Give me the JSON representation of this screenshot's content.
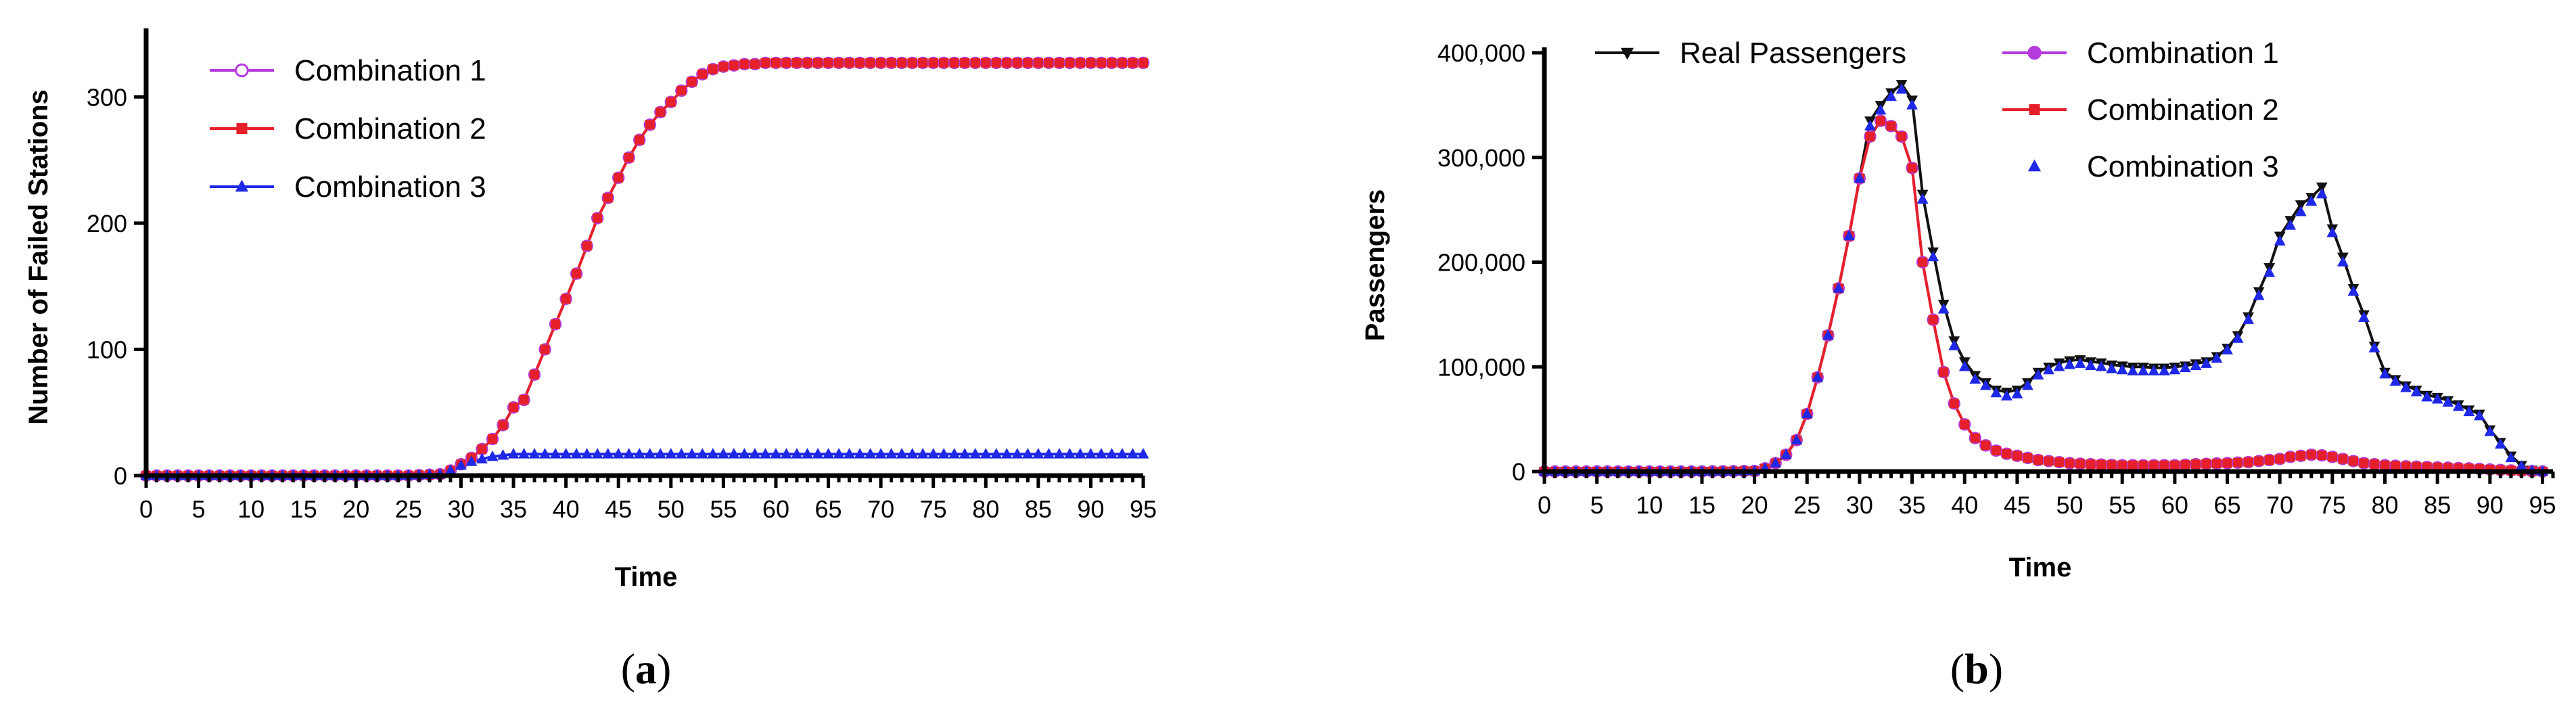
{
  "chart_data": [
    {
      "type": "line",
      "caption": "(a)",
      "caption_letter": "a",
      "xlabel": "Time",
      "ylabel": "Number of Failed Stations",
      "xlim": [
        0,
        95
      ],
      "ylim": [
        0,
        350
      ],
      "xticks": [
        "0",
        "5",
        "10",
        "15",
        "20",
        "25",
        "30",
        "35",
        "40",
        "45",
        "50",
        "55",
        "60",
        "65",
        "70",
        "75",
        "80",
        "85",
        "90",
        "95"
      ],
      "yticks": [
        "0",
        "100",
        "200",
        "300"
      ],
      "legend_position": "top-left",
      "grid": false,
      "series": [
        {
          "name": "Combination 1",
          "color": "#B43CDC",
          "marker": "open-circle",
          "x": [
            0,
            5,
            10,
            15,
            20,
            25,
            28,
            29,
            30,
            31,
            32,
            33,
            34,
            35,
            36,
            37,
            38,
            39,
            40,
            41,
            42,
            43,
            44,
            45,
            46,
            47,
            48,
            49,
            50,
            51,
            52,
            53,
            54,
            55,
            56,
            57,
            58,
            59,
            60,
            62,
            65,
            70,
            75,
            80,
            85,
            90,
            95
          ],
          "y": [
            0,
            0,
            0,
            0,
            0,
            0,
            1,
            4,
            9,
            14,
            21,
            29,
            40,
            54,
            60,
            80,
            100,
            120,
            140,
            160,
            182,
            204,
            220,
            236,
            252,
            266,
            278,
            288,
            296,
            305,
            312,
            318,
            322,
            324,
            325,
            326,
            326,
            327,
            327,
            327,
            327,
            327,
            327,
            327,
            327,
            327,
            327
          ]
        },
        {
          "name": "Combination 2",
          "color": "#E6202A",
          "marker": "square",
          "x": [
            0,
            5,
            10,
            15,
            20,
            25,
            28,
            29,
            30,
            31,
            32,
            33,
            34,
            35,
            36,
            37,
            38,
            39,
            40,
            41,
            42,
            43,
            44,
            45,
            46,
            47,
            48,
            49,
            50,
            51,
            52,
            53,
            54,
            55,
            56,
            57,
            58,
            59,
            60,
            62,
            65,
            70,
            75,
            80,
            85,
            90,
            95
          ],
          "y": [
            0,
            0,
            0,
            0,
            0,
            0,
            1,
            4,
            9,
            14,
            21,
            29,
            40,
            54,
            60,
            80,
            100,
            120,
            140,
            160,
            182,
            204,
            220,
            236,
            252,
            266,
            278,
            288,
            296,
            305,
            312,
            318,
            322,
            324,
            325,
            326,
            326,
            327,
            327,
            327,
            327,
            327,
            327,
            327,
            327,
            327,
            327
          ]
        },
        {
          "name": "Combination 3",
          "color": "#1E28E6",
          "marker": "triangle",
          "x": [
            0,
            5,
            10,
            15,
            20,
            25,
            28,
            29,
            30,
            31,
            32,
            33,
            34,
            35,
            36,
            37,
            40,
            45,
            50,
            55,
            60,
            65,
            70,
            75,
            80,
            85,
            90,
            95
          ],
          "y": [
            0,
            0,
            0,
            0,
            0,
            0,
            1,
            4,
            8,
            11,
            13,
            15,
            16,
            17,
            17,
            17,
            17,
            17,
            17,
            17,
            17,
            17,
            17,
            17,
            17,
            17,
            17,
            17
          ]
        }
      ]
    },
    {
      "type": "line",
      "caption": "(b)",
      "caption_letter": "b",
      "xlabel": "Time",
      "ylabel": "Passengers",
      "xlim": [
        0,
        96
      ],
      "ylim": [
        0,
        400000
      ],
      "xticks": [
        "0",
        "5",
        "10",
        "15",
        "20",
        "25",
        "30",
        "35",
        "40",
        "45",
        "50",
        "55",
        "60",
        "65",
        "70",
        "75",
        "80",
        "85",
        "90",
        "95"
      ],
      "yticks": [
        "0",
        "100,000",
        "200,000",
        "300,000",
        "400,000"
      ],
      "legend_position": "top",
      "grid": false,
      "series": [
        {
          "name": "Real Passengers",
          "color": "#111111",
          "marker": "down-triangle",
          "x": [
            0,
            5,
            10,
            15,
            20,
            21,
            22,
            23,
            24,
            25,
            26,
            27,
            28,
            29,
            30,
            31,
            32,
            33,
            34,
            35,
            36,
            37,
            38,
            39,
            40,
            41,
            42,
            43,
            44,
            45,
            46,
            47,
            48,
            49,
            50,
            51,
            52,
            53,
            54,
            55,
            56,
            57,
            58,
            59,
            60,
            61,
            62,
            63,
            64,
            65,
            66,
            67,
            68,
            69,
            70,
            71,
            72,
            73,
            74,
            75,
            76,
            77,
            78,
            79,
            80,
            81,
            82,
            83,
            84,
            85,
            86,
            87,
            88,
            89,
            90,
            91,
            92,
            93,
            94,
            95
          ],
          "y": [
            0,
            0,
            0,
            0,
            500,
            3000,
            8000,
            16000,
            30000,
            55000,
            90000,
            130000,
            175000,
            225000,
            280000,
            335000,
            350000,
            362000,
            370000,
            355000,
            265000,
            210000,
            160000,
            125000,
            105000,
            92000,
            85000,
            78000,
            76000,
            78000,
            85000,
            95000,
            100000,
            104000,
            106000,
            107000,
            105000,
            104000,
            102000,
            101000,
            100000,
            100000,
            99000,
            99000,
            100000,
            101000,
            103000,
            105000,
            110000,
            118000,
            130000,
            148000,
            172000,
            195000,
            225000,
            240000,
            255000,
            262000,
            272000,
            232000,
            205000,
            175000,
            150000,
            120000,
            95000,
            88000,
            82000,
            78000,
            73000,
            71000,
            68000,
            64000,
            59000,
            55000,
            40000,
            28000,
            15000,
            6000,
            1500,
            0
          ]
        },
        {
          "name": "Combination 1",
          "color": "#B43CDC",
          "marker": "circle",
          "x": [
            0,
            5,
            10,
            15,
            20,
            21,
            22,
            23,
            24,
            25,
            26,
            27,
            28,
            29,
            30,
            31,
            32,
            33,
            34,
            35,
            36,
            37,
            38,
            39,
            40,
            41,
            42,
            43,
            44,
            45,
            46,
            47,
            48,
            49,
            50,
            52,
            55,
            58,
            60,
            62,
            65,
            67,
            68,
            70,
            71,
            72,
            73,
            74,
            75,
            76,
            77,
            78,
            80,
            82,
            85,
            88,
            90,
            92,
            95
          ],
          "y": [
            0,
            0,
            0,
            0,
            500,
            3000,
            8000,
            16000,
            30000,
            55000,
            90000,
            130000,
            175000,
            225000,
            280000,
            320000,
            335000,
            330000,
            320000,
            290000,
            200000,
            145000,
            95000,
            65000,
            45000,
            32000,
            25000,
            20000,
            17000,
            15000,
            13000,
            11000,
            10000,
            9000,
            8000,
            7000,
            6000,
            6000,
            6000,
            7000,
            8000,
            9000,
            10000,
            12000,
            14000,
            15000,
            16000,
            15500,
            14000,
            12000,
            10000,
            8000,
            6000,
            5000,
            4000,
            3000,
            2000,
            1000,
            0
          ]
        },
        {
          "name": "Combination 2",
          "color": "#E6202A",
          "marker": "square",
          "x": [
            0,
            5,
            10,
            15,
            20,
            21,
            22,
            23,
            24,
            25,
            26,
            27,
            28,
            29,
            30,
            31,
            32,
            33,
            34,
            35,
            36,
            37,
            38,
            39,
            40,
            41,
            42,
            43,
            44,
            45,
            46,
            47,
            48,
            49,
            50,
            52,
            55,
            58,
            60,
            62,
            65,
            67,
            68,
            70,
            71,
            72,
            73,
            74,
            75,
            76,
            77,
            78,
            80,
            82,
            85,
            88,
            90,
            92,
            95
          ],
          "y": [
            0,
            0,
            0,
            0,
            500,
            3000,
            8000,
            16000,
            30000,
            55000,
            90000,
            130000,
            175000,
            225000,
            280000,
            320000,
            335000,
            330000,
            320000,
            290000,
            200000,
            145000,
            95000,
            65000,
            45000,
            32000,
            25000,
            20000,
            17000,
            15000,
            13000,
            11000,
            10000,
            9000,
            8000,
            7000,
            6000,
            6000,
            6000,
            7000,
            8000,
            9000,
            10000,
            12000,
            14000,
            15000,
            16000,
            15500,
            14000,
            12000,
            10000,
            8000,
            6000,
            5000,
            4000,
            3000,
            2000,
            1000,
            0
          ]
        },
        {
          "name": "Combination 3",
          "color": "#1E28E6",
          "marker": "triangle",
          "x": [
            0,
            5,
            10,
            15,
            20,
            21,
            22,
            23,
            24,
            25,
            26,
            27,
            28,
            29,
            30,
            31,
            32,
            33,
            34,
            35,
            36,
            37,
            38,
            39,
            40,
            41,
            42,
            43,
            44,
            45,
            46,
            47,
            48,
            49,
            50,
            51,
            52,
            53,
            54,
            55,
            56,
            57,
            58,
            59,
            60,
            61,
            62,
            63,
            64,
            65,
            66,
            67,
            68,
            69,
            70,
            71,
            72,
            73,
            74,
            75,
            76,
            77,
            78,
            79,
            80,
            81,
            82,
            83,
            84,
            85,
            86,
            87,
            88,
            89,
            90,
            91,
            92,
            93,
            94,
            95
          ],
          "y": [
            0,
            0,
            0,
            0,
            500,
            3000,
            8000,
            16000,
            30000,
            55000,
            90000,
            130000,
            175000,
            225000,
            280000,
            330000,
            345000,
            358000,
            365000,
            350000,
            260000,
            205000,
            155000,
            120000,
            100000,
            88000,
            82000,
            75000,
            72000,
            74000,
            82000,
            92000,
            97000,
            100000,
            102000,
            103000,
            101000,
            100000,
            98000,
            97000,
            96000,
            96000,
            96000,
            96000,
            97000,
            99000,
            101000,
            103000,
            108000,
            116000,
            127000,
            145000,
            168000,
            190000,
            220000,
            235000,
            248000,
            258000,
            265000,
            228000,
            200000,
            172000,
            147000,
            118000,
            93000,
            86000,
            80000,
            76000,
            71000,
            69000,
            66000,
            62000,
            57000,
            53000,
            38000,
            26000,
            13000,
            5000,
            1000,
            0
          ]
        }
      ]
    }
  ]
}
